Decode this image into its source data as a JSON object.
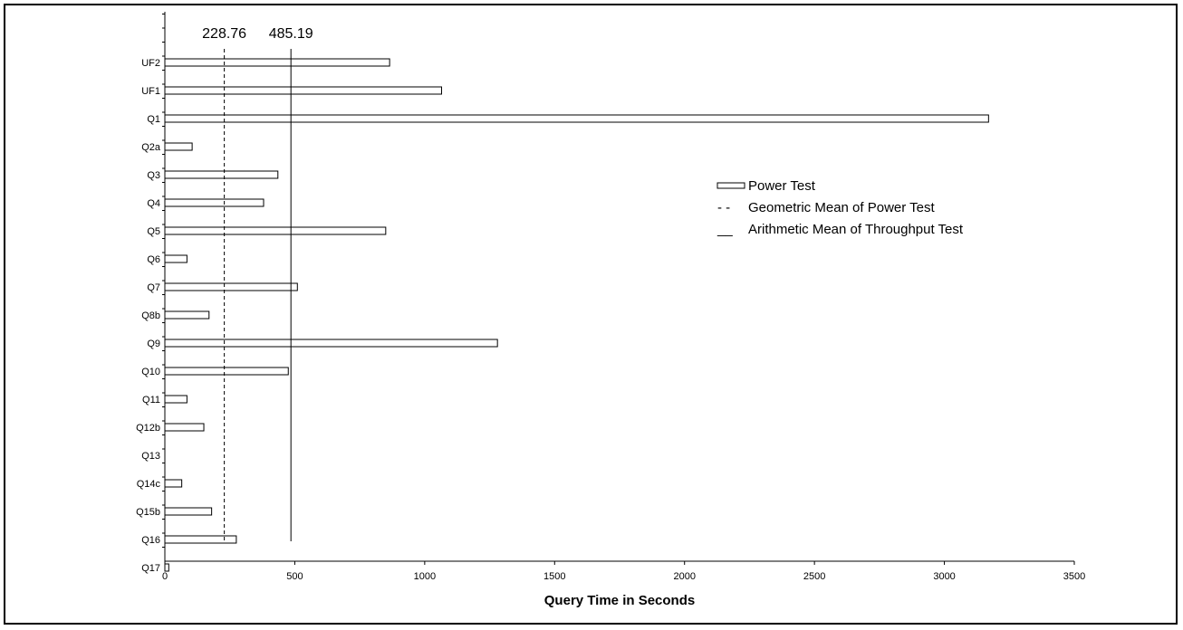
{
  "chart_data": {
    "type": "bar",
    "orientation": "horizontal",
    "title": "",
    "xlabel": "Query Time in Seconds",
    "ylabel": "",
    "xlim": [
      0,
      3500
    ],
    "xticks": [
      "0",
      "500",
      "1000",
      "1500",
      "2000",
      "2500",
      "3000",
      "3500"
    ],
    "grid": false,
    "legend_position": "right",
    "categories": [
      "UF2",
      "UF1",
      "Q1",
      "Q2a",
      "Q3",
      "Q4",
      "Q5",
      "Q6",
      "Q7",
      "Q8b",
      "Q9",
      "Q10",
      "Q11",
      "Q12b",
      "Q13",
      "Q14c",
      "Q15b",
      "Q16",
      "Q17"
    ],
    "series": [
      {
        "name": "Power Test",
        "values": [
          865,
          1065,
          3170,
          105,
          435,
          380,
          850,
          85,
          510,
          170,
          1280,
          475,
          85,
          150,
          0,
          65,
          180,
          275,
          15
        ]
      }
    ],
    "reference_lines": [
      {
        "name": "Geometric Mean of Power Test",
        "value": 228.76,
        "label": "228.76",
        "style": "dashed"
      },
      {
        "name": "Arithmetic Mean of Throughput Test",
        "value": 485.19,
        "label": "485.19",
        "style": "solid"
      }
    ],
    "legend": [
      {
        "symbol": "bar",
        "label": "Power Test"
      },
      {
        "symbol": "- -",
        "label": "Geometric Mean of Power Test"
      },
      {
        "symbol": "__",
        "label": "Arithmetic Mean of Throughput Test"
      }
    ],
    "colors": {
      "bar_fill": "#ffffff",
      "bar_stroke": "#000000",
      "line": "#000000"
    }
  }
}
